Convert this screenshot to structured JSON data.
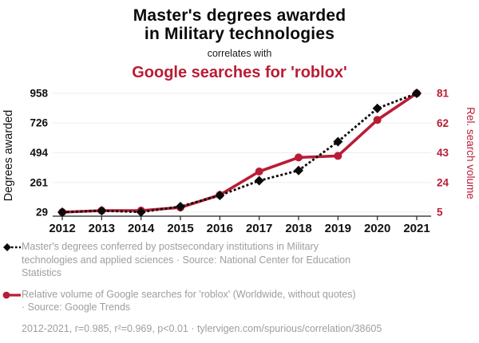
{
  "accent_color": "#b91d35",
  "series_black_color": "#0a0a0a",
  "gridline_color": "#ededed",
  "axis_color": "#222222",
  "legend_text_color": "#9e9e9e",
  "header": {
    "title_line1": "Master's degrees awarded",
    "title_line2": "in Military technologies",
    "connector": "correlates with",
    "subtitle": "Google searches for 'roblox'"
  },
  "chart_data": {
    "type": "line",
    "x": [
      2012,
      2013,
      2014,
      2015,
      2016,
      2017,
      2018,
      2019,
      2020,
      2021
    ],
    "left_axis": {
      "label": "Degrees awarded",
      "ticks": [
        29,
        261,
        494,
        726,
        958
      ],
      "min": 29,
      "max": 958
    },
    "right_axis": {
      "label": "Rel. search volume",
      "ticks": [
        5,
        24,
        43,
        62,
        81
      ],
      "min": 5,
      "max": 81
    },
    "grid": "horizontal-only",
    "series": [
      {
        "name": "Master's degrees in Military technologies",
        "axis": "left",
        "style": "dotted",
        "marker": "diamond",
        "values": [
          29,
          40,
          30,
          73,
          160,
          275,
          355,
          580,
          840,
          958
        ]
      },
      {
        "name": "Google searches for 'roblox'",
        "axis": "right",
        "style": "solid",
        "marker": "circle",
        "values": [
          5,
          6,
          6,
          8,
          16,
          31,
          40,
          41,
          64,
          81
        ]
      }
    ]
  },
  "legend": {
    "item1": "Master's degrees conferred by postsecondary institutions in Military technologies and applied sciences · Source: National Center for Education Statistics",
    "item2": "Relative volume of Google searches for 'roblox' (Worldwide, without quotes) · Source: Google Trends",
    "footnote": "2012-2021, r=0.985, r²=0.969, p<0.01 · tylervigen.com/spurious/correlation/38605"
  }
}
